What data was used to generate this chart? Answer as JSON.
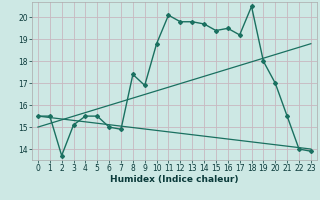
{
  "xlabel": "Humidex (Indice chaleur)",
  "bg_color": "#cde8e4",
  "grid_color": "#c8b8c0",
  "line_color": "#1a7060",
  "xlim": [
    -0.5,
    23.5
  ],
  "ylim": [
    13.5,
    20.7
  ],
  "yticks": [
    14,
    15,
    16,
    17,
    18,
    19,
    20
  ],
  "xticks": [
    0,
    1,
    2,
    3,
    4,
    5,
    6,
    7,
    8,
    9,
    10,
    11,
    12,
    13,
    14,
    15,
    16,
    17,
    18,
    19,
    20,
    21,
    22,
    23
  ],
  "line1_x": [
    0,
    1,
    2,
    3,
    4,
    5,
    6,
    7,
    8,
    9,
    10,
    11,
    12,
    13,
    14,
    15,
    16,
    17,
    18,
    19,
    20,
    21,
    22,
    23
  ],
  "line1_y": [
    15.5,
    15.5,
    13.7,
    15.1,
    15.5,
    15.5,
    15.0,
    14.9,
    17.4,
    16.9,
    18.8,
    20.1,
    19.8,
    19.8,
    19.7,
    19.4,
    19.5,
    19.2,
    20.5,
    18.0,
    17.0,
    15.5,
    14.0,
    13.9
  ],
  "line2_x": [
    0,
    23
  ],
  "line2_y": [
    15.0,
    18.8
  ],
  "line3_x": [
    0,
    23
  ],
  "line3_y": [
    15.5,
    14.0
  ]
}
